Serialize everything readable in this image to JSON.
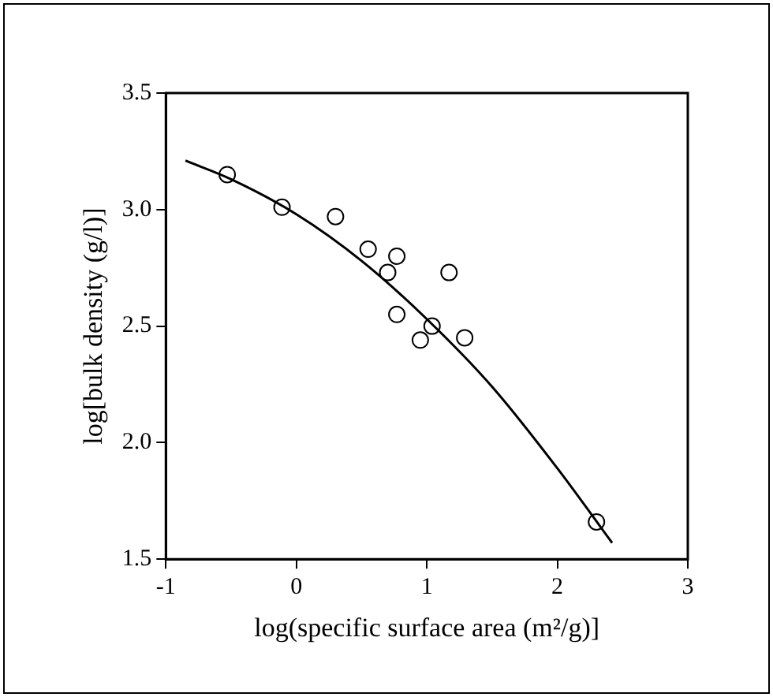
{
  "chart_data": {
    "type": "scatter",
    "xlabel": "log(specific surface area (m²/g)]",
    "ylabel": "log[bulk density (g/l)]",
    "xlim": [
      -1,
      3
    ],
    "xticks": [
      -1,
      0,
      1,
      2,
      3
    ],
    "ylim": [
      1.5,
      3.5
    ],
    "yticks": [
      {
        "value": 1.5,
        "label": "1.5"
      },
      {
        "value": 2,
        "label": "2.0"
      },
      {
        "value": 2.5,
        "label": "2.5"
      },
      {
        "value": 3,
        "label": "3.0"
      },
      {
        "value": 3.5,
        "label": "3.5"
      }
    ],
    "grid": false,
    "legend": false,
    "series": [
      {
        "marker": "circle",
        "color": "#000000",
        "x": [
          -0.53,
          -0.11,
          0.3,
          0.55,
          0.77,
          0.7,
          1.17,
          0.77,
          1.04,
          0.95,
          1.29,
          2.3
        ],
        "values": [
          3.15,
          3.01,
          2.97,
          2.83,
          2.8,
          2.73,
          2.73,
          2.55,
          2.5,
          2.44,
          2.45,
          1.66
        ]
      },
      {
        "type": "line",
        "marker": "none",
        "color": "#000000",
        "line_style": "solid",
        "x": [
          -0.85,
          -0.5,
          0,
          0.5,
          1,
          1.5,
          2,
          2.42
        ],
        "values": [
          3.21,
          3.13,
          2.98,
          2.78,
          2.53,
          2.24,
          1.89,
          1.57
        ]
      }
    ]
  }
}
